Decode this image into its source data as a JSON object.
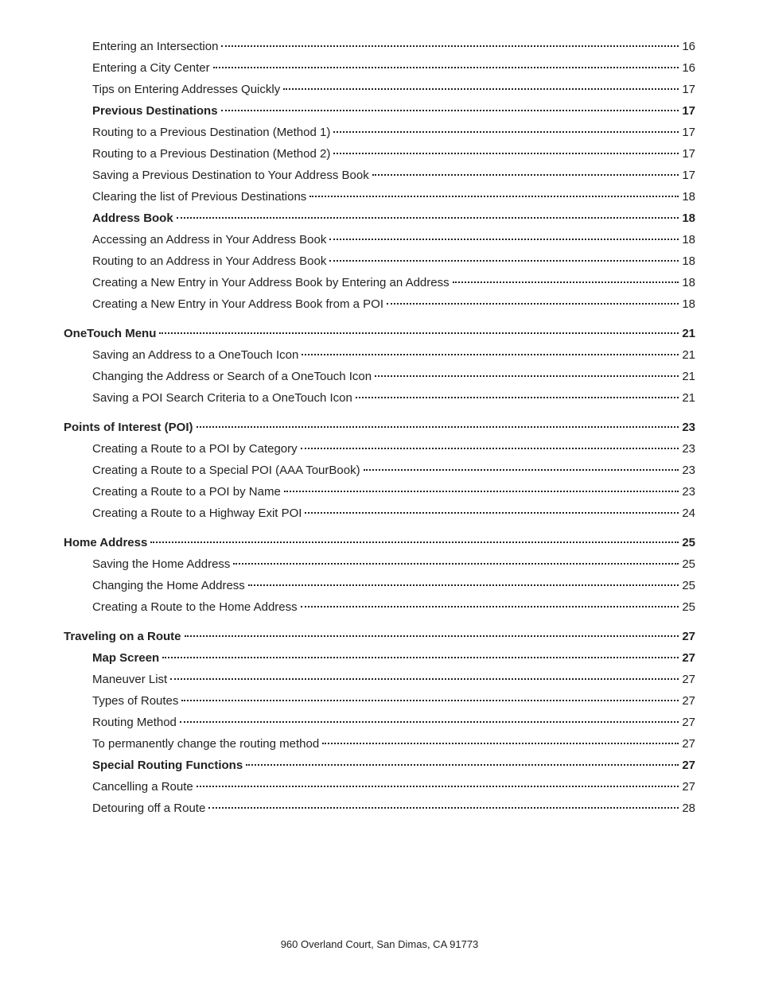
{
  "entries": [
    {
      "label": "Entering an Intersection",
      "page": "16",
      "level": 3
    },
    {
      "label": "Entering a City Center",
      "page": "16",
      "level": 3
    },
    {
      "label": "Tips on Entering Addresses Quickly",
      "page": "17",
      "level": 3
    },
    {
      "label": "Previous Destinations",
      "page": "17",
      "level": 2
    },
    {
      "label": "Routing to a Previous Destination (Method 1)",
      "page": "17",
      "level": 3
    },
    {
      "label": "Routing to a Previous Destination (Method 2)",
      "page": "17",
      "level": 3
    },
    {
      "label": "Saving a Previous Destination to Your Address Book",
      "page": "17",
      "level": 3
    },
    {
      "label": "Clearing the list of Previous Destinations",
      "page": "18",
      "level": 3
    },
    {
      "label": "Address Book",
      "page": "18",
      "level": 2
    },
    {
      "label": "Accessing an Address in Your Address Book",
      "page": "18",
      "level": 3
    },
    {
      "label": "Routing to an Address in Your Address Book",
      "page": "18",
      "level": 3
    },
    {
      "label": "Creating a New Entry in Your Address Book by Entering an Address",
      "page": "18",
      "level": 3
    },
    {
      "label": "Creating a New Entry in Your Address Book from a POI",
      "page": "18",
      "level": 3
    },
    {
      "label": "OneTouch Menu",
      "page": "21",
      "level": 1
    },
    {
      "label": "Saving an Address to a OneTouch Icon",
      "page": "21",
      "level": 3
    },
    {
      "label": "Changing the Address or Search of a OneTouch Icon",
      "page": "21",
      "level": 3
    },
    {
      "label": "Saving a POI Search Criteria to a OneTouch Icon",
      "page": "21",
      "level": 3
    },
    {
      "label": "Points of Interest (POI)",
      "page": "23",
      "level": 1
    },
    {
      "label": "Creating a Route to a POI by Category",
      "page": "23",
      "level": 3
    },
    {
      "label": "Creating a Route to a Special POI (AAA TourBook)",
      "page": "23",
      "level": 3
    },
    {
      "label": "Creating a Route to a POI by Name",
      "page": "23",
      "level": 3
    },
    {
      "label": "Creating a Route to a Highway Exit POI",
      "page": "24",
      "level": 3
    },
    {
      "label": "Home Address",
      "page": "25",
      "level": 1
    },
    {
      "label": "Saving the Home Address",
      "page": "25",
      "level": 3
    },
    {
      "label": "Changing the Home Address",
      "page": "25",
      "level": 3
    },
    {
      "label": "Creating a Route to the Home Address",
      "page": "25",
      "level": 3
    },
    {
      "label": "Traveling on a Route",
      "page": "27",
      "level": 1
    },
    {
      "label": "Map Screen",
      "page": "27",
      "level": 2
    },
    {
      "label": "Maneuver List",
      "page": "27",
      "level": 3
    },
    {
      "label": "Types of Routes",
      "page": "27",
      "level": 3
    },
    {
      "label": "Routing Method",
      "page": "27",
      "level": 3
    },
    {
      "label": "To permanently change the routing method",
      "page": "27",
      "level": 3
    },
    {
      "label": "Special Routing Functions",
      "page": "27",
      "level": 2
    },
    {
      "label": "Cancelling a Route",
      "page": "27",
      "level": 3
    },
    {
      "label": "Detouring off a Route",
      "page": "28",
      "level": 3
    }
  ],
  "footer_text": "960 Overland Court, San Dimas, CA  91773"
}
